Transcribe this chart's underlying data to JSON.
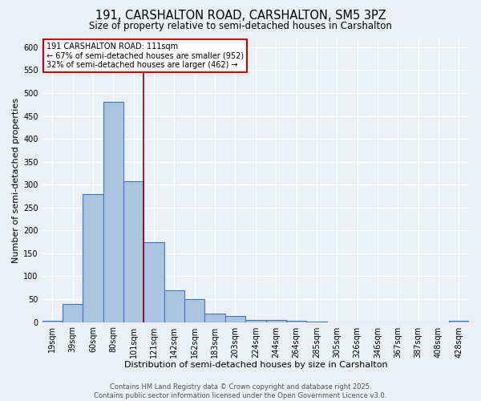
{
  "title": "191, CARSHALTON ROAD, CARSHALTON, SM5 3PZ",
  "subtitle": "Size of property relative to semi-detached houses in Carshalton",
  "xlabel": "Distribution of semi-detached houses by size in Carshalton",
  "ylabel": "Number of semi-detached properties",
  "categories": [
    "19sqm",
    "39sqm",
    "60sqm",
    "80sqm",
    "101sqm",
    "121sqm",
    "142sqm",
    "162sqm",
    "183sqm",
    "203sqm",
    "224sqm",
    "244sqm",
    "264sqm",
    "285sqm",
    "305sqm",
    "326sqm",
    "346sqm",
    "367sqm",
    "387sqm",
    "408sqm",
    "428sqm"
  ],
  "bar_values": [
    3,
    40,
    280,
    480,
    308,
    175,
    70,
    50,
    18,
    13,
    5,
    5,
    3,
    1,
    0,
    0,
    0,
    0,
    0,
    0,
    3
  ],
  "bar_color": "#aac4e0",
  "bar_edgecolor": "#4472c4",
  "bar_linewidth": 0.8,
  "bg_color": "#eaf0f8",
  "grid_color": "#ffffff",
  "property_line_color": "#8b0000",
  "annotation_title": "191 CARSHALTON ROAD: 111sqm",
  "annotation_line1": "← 67% of semi-detached houses are smaller (952)",
  "annotation_line2": "32% of semi-detached houses are larger (462) →",
  "annotation_box_color": "#ffffff",
  "annotation_box_edgecolor": "#cc0000",
  "footer_line1": "Contains HM Land Registry data © Crown copyright and database right 2025.",
  "footer_line2": "Contains public sector information licensed under the Open Government Licence v3.0.",
  "ylim": [
    0,
    620
  ],
  "yticks": [
    0,
    50,
    100,
    150,
    200,
    250,
    300,
    350,
    400,
    450,
    500,
    550,
    600
  ],
  "title_fontsize": 10.5,
  "subtitle_fontsize": 8.5,
  "axis_label_fontsize": 8,
  "tick_fontsize": 7,
  "footer_fontsize": 6,
  "annotation_fontsize": 7
}
